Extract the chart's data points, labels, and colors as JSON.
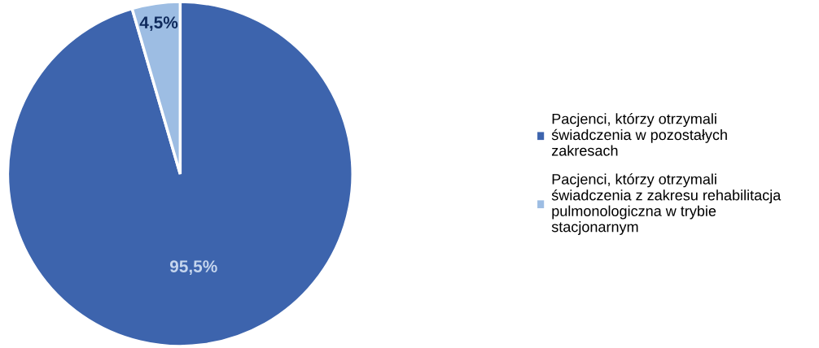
{
  "chart_data": {
    "type": "pie",
    "categories": [
      "Pacjenci, którzy otrzymali świadczenia w pozostałych zakresach",
      "Pacjenci, którzy otrzymali świadczenia z zakresu rehabilitacja pulmonologiczna w trybie stacjonarnym"
    ],
    "values": [
      95.5,
      4.5
    ],
    "value_labels": [
      "95,5%",
      "4,5%"
    ],
    "colors": [
      "#3d64ad",
      "#9dbde3"
    ],
    "legend": "right"
  }
}
